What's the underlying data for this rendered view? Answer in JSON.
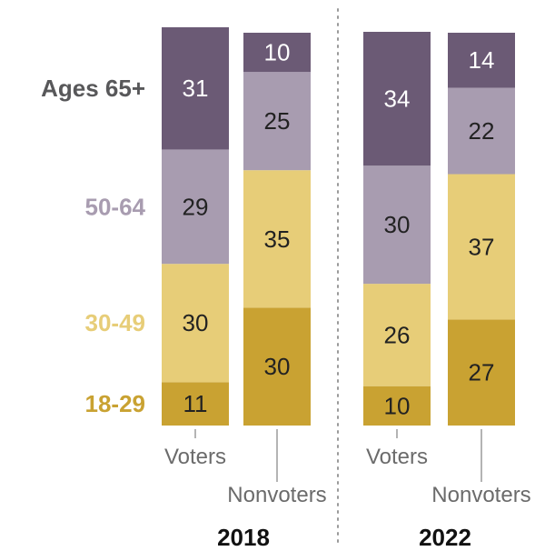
{
  "chart_data": {
    "type": "bar",
    "stacked": true,
    "normalized_to": 100,
    "groups": [
      {
        "year": "2018",
        "bars": [
          {
            "category": "Voters",
            "values": [
              11,
              30,
              29,
              31
            ]
          },
          {
            "category": "Nonvoters",
            "values": [
              30,
              35,
              25,
              10
            ]
          }
        ]
      },
      {
        "year": "2022",
        "bars": [
          {
            "category": "Voters",
            "values": [
              10,
              26,
              30,
              34
            ]
          },
          {
            "category": "Nonvoters",
            "values": [
              27,
              37,
              22,
              14
            ]
          }
        ]
      }
    ],
    "series": [
      {
        "name": "18-29",
        "color": "#c9a232",
        "text_color": "#c9a232",
        "value_text_color": "#222222"
      },
      {
        "name": "30-49",
        "color": "#e7cd78",
        "text_color": "#e7cd78",
        "value_text_color": "#222222"
      },
      {
        "name": "50-64",
        "color": "#a89cb0",
        "text_color": "#a89cb0",
        "value_text_color": "#222222"
      },
      {
        "name": "Ages 65+",
        "color": "#6b5a75",
        "text_color": "#58585a",
        "value_text_color": "#ffffff"
      }
    ],
    "legend": "left",
    "grid": false
  }
}
